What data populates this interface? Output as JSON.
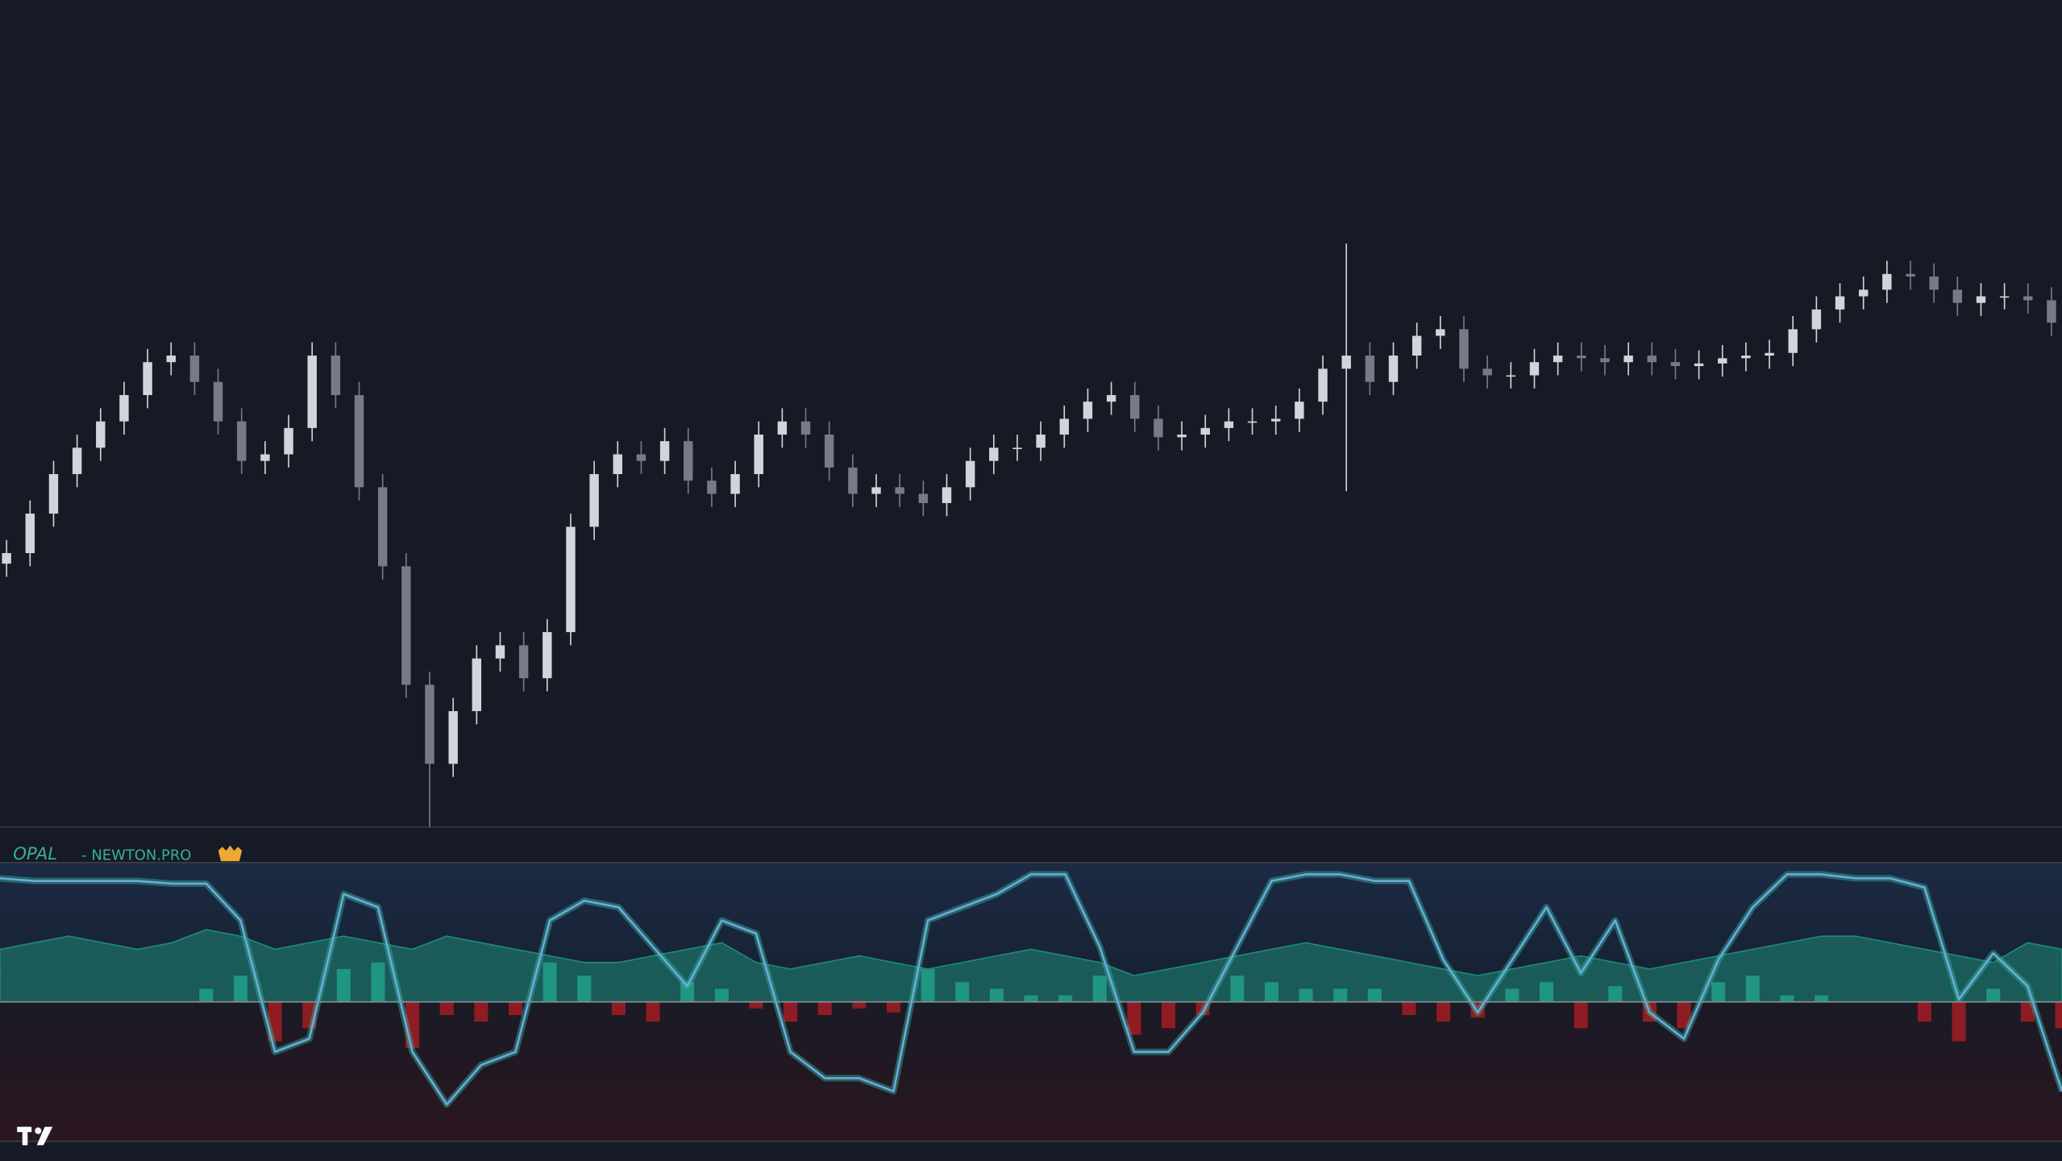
{
  "chart_data": [
    {
      "type": "candlestick",
      "ylim": [
        0,
        628
      ],
      "up_color": "#d1d4dc",
      "down_color": "#787b86",
      "open": [
        200,
        208,
        238,
        268,
        288,
        308,
        328,
        353,
        358,
        338,
        308,
        278,
        283,
        303,
        358,
        328,
        258,
        198,
        108,
        48,
        88,
        128,
        138,
        113,
        148,
        228,
        268,
        283,
        278,
        293,
        263,
        253,
        268,
        298,
        308,
        298,
        273,
        253,
        258,
        253,
        246,
        258,
        278,
        288,
        288,
        298,
        310,
        323,
        328,
        310,
        296,
        298,
        303,
        308,
        308,
        310,
        323,
        348,
        358,
        338,
        358,
        373,
        378,
        348,
        343,
        343,
        353,
        358,
        356,
        353,
        358,
        353,
        350,
        352,
        356,
        358,
        360,
        378,
        393,
        403,
        408,
        420,
        418,
        408,
        398,
        403,
        403,
        400
      ],
      "high": [
        218,
        248,
        278,
        298,
        318,
        338,
        363,
        368,
        368,
        348,
        318,
        293,
        313,
        368,
        368,
        338,
        268,
        208,
        118,
        98,
        138,
        148,
        148,
        158,
        238,
        278,
        293,
        293,
        303,
        303,
        273,
        278,
        308,
        318,
        318,
        308,
        283,
        268,
        268,
        263,
        268,
        288,
        298,
        298,
        308,
        320,
        333,
        338,
        338,
        320,
        308,
        313,
        318,
        318,
        320,
        333,
        358,
        443,
        368,
        368,
        383,
        388,
        388,
        358,
        353,
        363,
        368,
        368,
        366,
        368,
        368,
        363,
        362,
        366,
        368,
        370,
        388,
        403,
        413,
        418,
        430,
        430,
        428,
        418,
        413,
        413,
        413,
        410
      ],
      "low": [
        190,
        198,
        228,
        258,
        278,
        298,
        318,
        343,
        328,
        298,
        268,
        268,
        273,
        293,
        318,
        248,
        188,
        98,
        0,
        38,
        78,
        118,
        103,
        103,
        138,
        218,
        258,
        268,
        268,
        253,
        243,
        243,
        258,
        288,
        288,
        263,
        243,
        243,
        243,
        236,
        236,
        248,
        268,
        278,
        278,
        288,
        300,
        313,
        300,
        286,
        286,
        288,
        293,
        298,
        298,
        300,
        313,
        255,
        328,
        328,
        348,
        363,
        338,
        333,
        333,
        333,
        343,
        346,
        343,
        343,
        343,
        340,
        340,
        342,
        346,
        348,
        350,
        368,
        383,
        393,
        398,
        408,
        398,
        388,
        388,
        393,
        390,
        373
      ],
      "close": [
        208,
        238,
        268,
        288,
        308,
        328,
        353,
        358,
        338,
        308,
        278,
        283,
        303,
        358,
        328,
        258,
        198,
        108,
        48,
        88,
        128,
        138,
        113,
        148,
        228,
        268,
        283,
        278,
        293,
        263,
        253,
        268,
        298,
        308,
        298,
        273,
        253,
        258,
        253,
        246,
        258,
        278,
        288,
        288,
        298,
        310,
        323,
        328,
        310,
        296,
        298,
        303,
        308,
        308,
        310,
        323,
        348,
        358,
        338,
        358,
        373,
        378,
        348,
        343,
        343,
        353,
        358,
        356,
        353,
        358,
        353,
        350,
        352,
        356,
        358,
        360,
        378,
        393,
        403,
        408,
        420,
        418,
        408,
        398,
        403,
        403,
        400,
        383
      ]
    },
    {
      "type": "oscillator",
      "title": "OPAL",
      "subtitle": "- NEWTON.PRO",
      "ylim": [
        -106,
        106
      ],
      "line_color": "#6fa8dc",
      "area_color": "#1f8a78",
      "hist_up_color": "#1fa38f",
      "hist_down_color": "#8e1c22",
      "line": [
        94,
        92,
        92,
        92,
        92,
        90,
        90,
        62,
        -38,
        -28,
        82,
        72,
        -38,
        -78,
        -48,
        -38,
        62,
        77,
        72,
        42,
        12,
        62,
        52,
        -38,
        -58,
        -58,
        -68,
        62,
        72,
        82,
        97,
        97,
        42,
        -38,
        -38,
        -8,
        42,
        92,
        97,
        97,
        92,
        92,
        32,
        -8,
        32,
        72,
        22,
        62,
        -8,
        -28,
        32,
        72,
        97,
        97,
        94,
        94,
        87,
        2,
        37,
        12,
        -68
      ],
      "area": [
        40,
        45,
        50,
        45,
        40,
        45,
        55,
        50,
        40,
        45,
        50,
        45,
        40,
        50,
        45,
        40,
        35,
        30,
        30,
        35,
        40,
        45,
        30,
        25,
        30,
        35,
        30,
        25,
        30,
        35,
        40,
        35,
        30,
        20,
        25,
        30,
        35,
        40,
        45,
        40,
        35,
        30,
        25,
        20,
        25,
        30,
        35,
        30,
        25,
        30,
        35,
        40,
        45,
        50,
        50,
        45,
        40,
        35,
        30,
        45,
        40
      ],
      "histogram": [
        0,
        0,
        0,
        0,
        0,
        0,
        10,
        20,
        -30,
        -20,
        25,
        30,
        -35,
        -10,
        -15,
        -10,
        30,
        20,
        -10,
        -15,
        15,
        10,
        -5,
        -15,
        -10,
        -5,
        -8,
        25,
        15,
        10,
        5,
        5,
        20,
        -25,
        -20,
        -10,
        20,
        15,
        10,
        10,
        10,
        -10,
        -15,
        -12,
        10,
        15,
        -20,
        12,
        -15,
        -20,
        15,
        20,
        5,
        5,
        0,
        0,
        -15,
        -30,
        10,
        -15,
        -20
      ]
    }
  ]
}
